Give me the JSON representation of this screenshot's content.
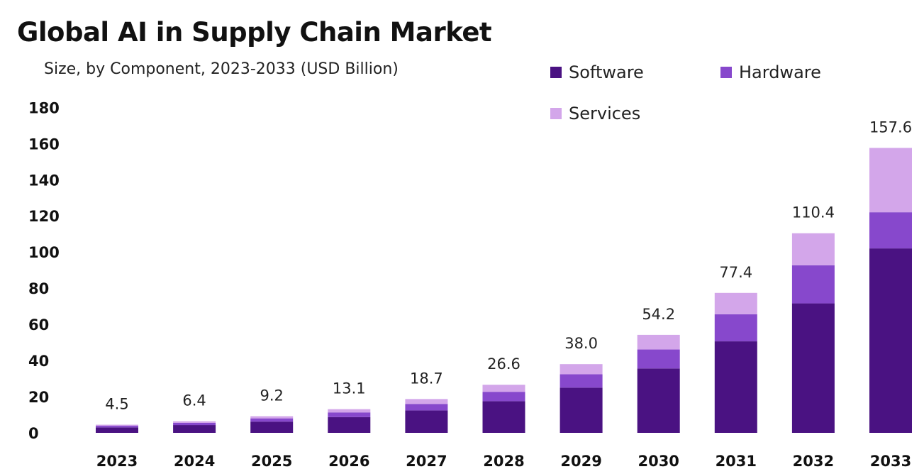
{
  "title": "Global AI in Supply Chain Market",
  "subtitle": "Size, by Component, 2023-2033 (USD Billion)",
  "legend": [
    {
      "label": "Software",
      "color": "#4a1282"
    },
    {
      "label": "Hardware",
      "color": "#8748cc"
    },
    {
      "label": "Services",
      "color": "#d3a6ea"
    }
  ],
  "chart_data": {
    "type": "bar",
    "stacked": true,
    "categories": [
      "2023",
      "2024",
      "2025",
      "2026",
      "2027",
      "2028",
      "2029",
      "2030",
      "2031",
      "2032",
      "2033"
    ],
    "series": [
      {
        "name": "Software",
        "color": "#4a1282",
        "values": [
          3.0,
          4.3,
          6.2,
          8.7,
          12.4,
          17.5,
          25.0,
          35.6,
          50.6,
          71.6,
          102.0
        ]
      },
      {
        "name": "Hardware",
        "color": "#8748cc",
        "values": [
          0.9,
          1.2,
          1.8,
          2.6,
          3.6,
          5.2,
          7.4,
          10.5,
          15.0,
          21.1,
          20.0
        ]
      },
      {
        "name": "Services",
        "color": "#d3a6ea",
        "values": [
          0.6,
          0.9,
          1.2,
          1.8,
          2.7,
          3.9,
          5.6,
          8.1,
          11.8,
          17.7,
          35.6
        ]
      }
    ],
    "totals": [
      "4.5",
      "6.4",
      "9.2",
      "13.1",
      "18.7",
      "26.6",
      "38.0",
      "54.2",
      "77.4",
      "110.4",
      "157.6"
    ],
    "yticks": [
      "0",
      "20",
      "40",
      "60",
      "80",
      "100",
      "120",
      "140",
      "160",
      "180"
    ],
    "ylim": [
      0,
      180
    ],
    "xlabel": "",
    "ylabel": "",
    "grid": false,
    "legend_position": "top-right"
  }
}
